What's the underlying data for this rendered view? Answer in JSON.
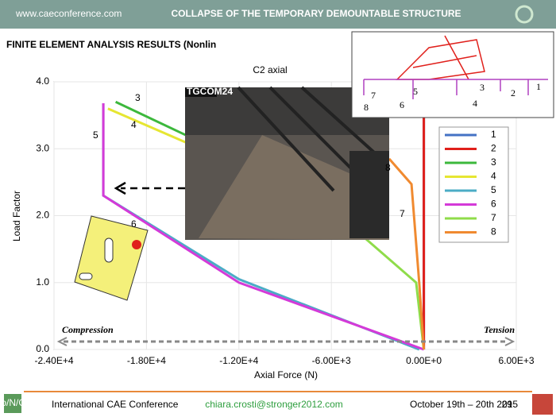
{
  "header": {
    "site": "www.caeconference.com",
    "title": "COLLAPSE OF THE TEMPORARY DEMOUNTABLE STRUCTURE"
  },
  "slide_title": "FINITE ELEMENT ANALYSIS RESULTS  (Nonlin",
  "chart_data": {
    "type": "line",
    "title": "C2 axial",
    "x_label": "Axial Force (N)",
    "y_label": "Load Factor",
    "xlim": [
      -24000,
      6000
    ],
    "xticks": [
      {
        "value": -24000,
        "label": "-2.40E+4"
      },
      {
        "value": -18000,
        "label": "-1.80E+4"
      },
      {
        "value": -12000,
        "label": "-1.20E+4"
      },
      {
        "value": -6000,
        "label": "-6.00E+3"
      },
      {
        "value": 0,
        "label": "0.00E+0"
      },
      {
        "value": 6000,
        "label": "6.00E+3"
      }
    ],
    "ylim": [
      0,
      4
    ],
    "yticks": [
      {
        "value": 0,
        "label": "0.0"
      },
      {
        "value": 1,
        "label": "1.0"
      },
      {
        "value": 2,
        "label": "2.0"
      },
      {
        "value": 3,
        "label": "3.0"
      },
      {
        "value": 4,
        "label": "4.0"
      }
    ],
    "grid": true,
    "series": [
      {
        "name": "1",
        "color": "#4472c4",
        "x": [
          0,
          0
        ],
        "values": [
          0,
          3.5
        ]
      },
      {
        "name": "2",
        "color": "#e0201b",
        "x": [
          0,
          0
        ],
        "values": [
          0,
          3.5
        ]
      },
      {
        "name": "3",
        "color": "#3cb83c",
        "x": [
          -20000,
          -14500
        ],
        "values": [
          3.7,
          3.1
        ]
      },
      {
        "name": "4",
        "color": "#e6e632",
        "x": [
          -20500,
          -14500
        ],
        "values": [
          3.6,
          3.0
        ]
      },
      {
        "name": "5",
        "color": "#4bacc6",
        "x": [
          -300,
          -12000,
          -20800,
          -20800
        ],
        "values": [
          0,
          1.05,
          2.3,
          3.68
        ]
      },
      {
        "name": "6",
        "color": "#d43ad8",
        "x": [
          0,
          -12000,
          -20800,
          -20800
        ],
        "values": [
          0,
          1.0,
          2.3,
          3.68
        ]
      },
      {
        "name": "7",
        "color": "#8fdc4a",
        "x": [
          0,
          -500,
          -3800
        ],
        "values": [
          0,
          1.0,
          1.66
        ]
      },
      {
        "name": "8",
        "color": "#f08a30",
        "x": [
          0,
          -300,
          -800,
          -2250
        ],
        "values": [
          0,
          1.0,
          2.47,
          2.85
        ]
      }
    ],
    "annotations": [
      "3",
      "4",
      "5",
      "6",
      "7",
      "8"
    ],
    "compression": "Compression",
    "tension": "Tension"
  },
  "photo": {
    "logo": "TGCOM24"
  },
  "inset": {
    "labels": [
      "1",
      "2",
      "3",
      "4",
      "5",
      "6",
      "7",
      "8"
    ]
  },
  "footer": {
    "logo": "Str/o/N/GER",
    "conference": "International CAE Conference",
    "email": "chiara.crosti@stronger2012.com",
    "dates": "October 19th – 20th 2015",
    "page": "29"
  }
}
